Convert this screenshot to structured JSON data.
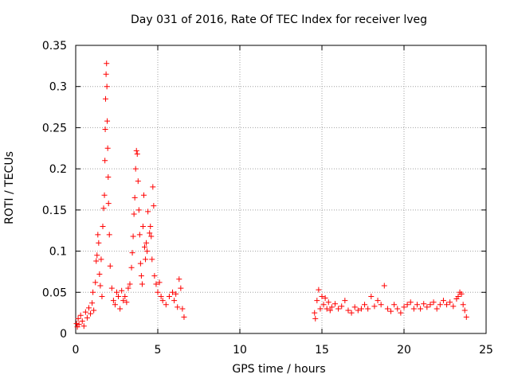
{
  "chart_data": {
    "type": "scatter",
    "title": "Day 031 of 2016, Rate Of TEC Index for receiver lveg",
    "xlabel": "GPS time / hours",
    "ylabel": "ROTI / TECUs",
    "xlim": [
      0,
      25
    ],
    "ylim": [
      0,
      0.35
    ],
    "xticks": [
      0,
      5,
      10,
      15,
      20,
      25
    ],
    "yticks": [
      0,
      0.05,
      0.1,
      0.15,
      0.2,
      0.25,
      0.3,
      0.35
    ],
    "grid": true,
    "legend": "none",
    "marker": "+",
    "series": [
      {
        "color": "#ff0000",
        "points": [
          [
            0.05,
            0.012
          ],
          [
            0.1,
            0.008
          ],
          [
            0.15,
            0.018
          ],
          [
            0.2,
            0.011
          ],
          [
            0.3,
            0.022
          ],
          [
            0.4,
            0.015
          ],
          [
            0.5,
            0.009
          ],
          [
            0.6,
            0.026
          ],
          [
            0.7,
            0.019
          ],
          [
            0.8,
            0.031
          ],
          [
            0.9,
            0.024
          ],
          [
            1.0,
            0.037
          ],
          [
            1.05,
            0.05
          ],
          [
            1.1,
            0.028
          ],
          [
            1.2,
            0.062
          ],
          [
            1.25,
            0.088
          ],
          [
            1.3,
            0.095
          ],
          [
            1.35,
            0.12
          ],
          [
            1.4,
            0.11
          ],
          [
            1.45,
            0.072
          ],
          [
            1.5,
            0.058
          ],
          [
            1.55,
            0.09
          ],
          [
            1.6,
            0.045
          ],
          [
            1.65,
            0.13
          ],
          [
            1.7,
            0.152
          ],
          [
            1.75,
            0.168
          ],
          [
            1.78,
            0.21
          ],
          [
            1.8,
            0.248
          ],
          [
            1.82,
            0.285
          ],
          [
            1.85,
            0.315
          ],
          [
            1.88,
            0.328
          ],
          [
            1.9,
            0.3
          ],
          [
            1.92,
            0.258
          ],
          [
            1.95,
            0.225
          ],
          [
            1.98,
            0.19
          ],
          [
            2.0,
            0.158
          ],
          [
            2.05,
            0.12
          ],
          [
            2.1,
            0.082
          ],
          [
            2.2,
            0.055
          ],
          [
            2.3,
            0.04
          ],
          [
            2.4,
            0.035
          ],
          [
            2.5,
            0.05
          ],
          [
            2.6,
            0.045
          ],
          [
            2.7,
            0.03
          ],
          [
            2.8,
            0.052
          ],
          [
            2.9,
            0.04
          ],
          [
            3.0,
            0.045
          ],
          [
            3.1,
            0.038
          ],
          [
            3.2,
            0.055
          ],
          [
            3.3,
            0.06
          ],
          [
            3.4,
            0.08
          ],
          [
            3.45,
            0.098
          ],
          [
            3.5,
            0.118
          ],
          [
            3.55,
            0.145
          ],
          [
            3.6,
            0.165
          ],
          [
            3.65,
            0.2
          ],
          [
            3.7,
            0.222
          ],
          [
            3.75,
            0.218
          ],
          [
            3.8,
            0.185
          ],
          [
            3.85,
            0.15
          ],
          [
            3.9,
            0.12
          ],
          [
            3.95,
            0.085
          ],
          [
            4.0,
            0.07
          ],
          [
            4.05,
            0.06
          ],
          [
            4.1,
            0.13
          ],
          [
            4.15,
            0.168
          ],
          [
            4.2,
            0.105
          ],
          [
            4.25,
            0.09
          ],
          [
            4.3,
            0.11
          ],
          [
            4.35,
            0.1
          ],
          [
            4.4,
            0.148
          ],
          [
            4.5,
            0.122
          ],
          [
            4.55,
            0.13
          ],
          [
            4.6,
            0.118
          ],
          [
            4.65,
            0.09
          ],
          [
            4.7,
            0.178
          ],
          [
            4.75,
            0.155
          ],
          [
            4.8,
            0.07
          ],
          [
            4.9,
            0.06
          ],
          [
            5.0,
            0.05
          ],
          [
            5.1,
            0.062
          ],
          [
            5.2,
            0.045
          ],
          [
            5.3,
            0.04
          ],
          [
            5.5,
            0.035
          ],
          [
            5.7,
            0.045
          ],
          [
            5.9,
            0.05
          ],
          [
            6.0,
            0.04
          ],
          [
            6.1,
            0.048
          ],
          [
            6.2,
            0.032
          ],
          [
            6.3,
            0.066
          ],
          [
            6.4,
            0.055
          ],
          [
            6.5,
            0.03
          ],
          [
            6.6,
            0.02
          ],
          [
            14.55,
            0.025
          ],
          [
            14.6,
            0.018
          ],
          [
            14.7,
            0.04
          ],
          [
            14.8,
            0.053
          ],
          [
            14.9,
            0.03
          ],
          [
            15.0,
            0.045
          ],
          [
            15.1,
            0.035
          ],
          [
            15.2,
            0.043
          ],
          [
            15.3,
            0.03
          ],
          [
            15.4,
            0.038
          ],
          [
            15.5,
            0.028
          ],
          [
            15.6,
            0.032
          ],
          [
            15.8,
            0.036
          ],
          [
            16.0,
            0.03
          ],
          [
            16.2,
            0.033
          ],
          [
            16.4,
            0.04
          ],
          [
            16.6,
            0.028
          ],
          [
            16.8,
            0.025
          ],
          [
            17.0,
            0.032
          ],
          [
            17.2,
            0.028
          ],
          [
            17.4,
            0.03
          ],
          [
            17.6,
            0.035
          ],
          [
            17.8,
            0.03
          ],
          [
            18.0,
            0.045
          ],
          [
            18.2,
            0.033
          ],
          [
            18.4,
            0.04
          ],
          [
            18.6,
            0.035
          ],
          [
            18.8,
            0.058
          ],
          [
            19.0,
            0.03
          ],
          [
            19.2,
            0.027
          ],
          [
            19.4,
            0.035
          ],
          [
            19.6,
            0.03
          ],
          [
            19.8,
            0.025
          ],
          [
            20.0,
            0.032
          ],
          [
            20.2,
            0.035
          ],
          [
            20.4,
            0.038
          ],
          [
            20.6,
            0.03
          ],
          [
            20.8,
            0.035
          ],
          [
            21.0,
            0.03
          ],
          [
            21.2,
            0.036
          ],
          [
            21.4,
            0.032
          ],
          [
            21.6,
            0.035
          ],
          [
            21.8,
            0.038
          ],
          [
            22.0,
            0.03
          ],
          [
            22.2,
            0.035
          ],
          [
            22.4,
            0.04
          ],
          [
            22.6,
            0.035
          ],
          [
            22.8,
            0.038
          ],
          [
            23.0,
            0.033
          ],
          [
            23.2,
            0.042
          ],
          [
            23.3,
            0.045
          ],
          [
            23.4,
            0.05
          ],
          [
            23.5,
            0.048
          ],
          [
            23.6,
            0.035
          ],
          [
            23.7,
            0.028
          ],
          [
            23.8,
            0.02
          ]
        ]
      }
    ]
  }
}
